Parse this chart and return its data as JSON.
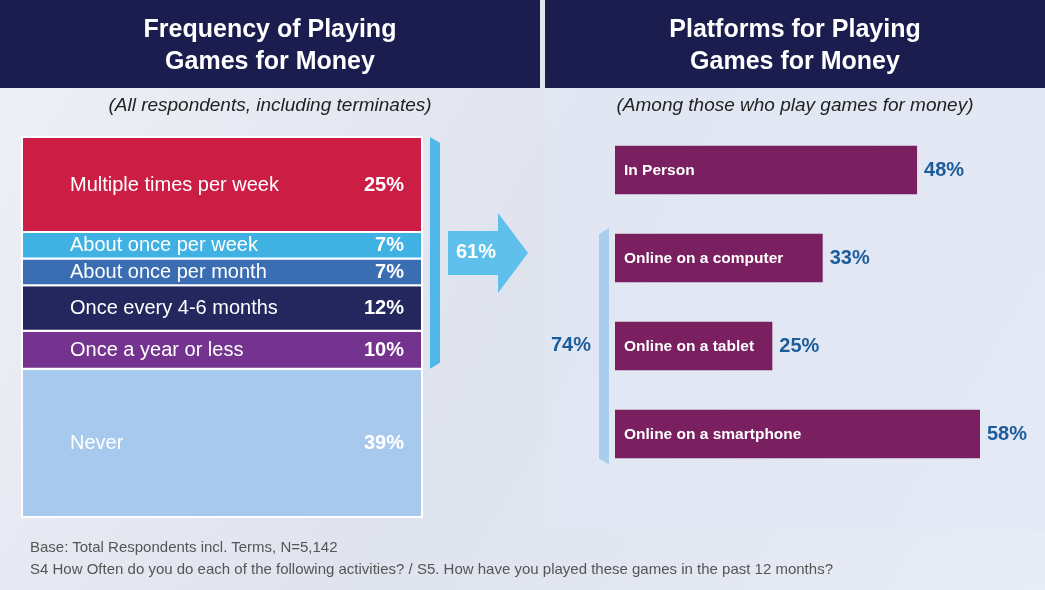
{
  "chart_data": [
    {
      "type": "bar",
      "title": "Frequency of Playing Games for Money",
      "subtitle": "(All respondents, including terminates)",
      "categories": [
        null
      ],
      "stacked": true,
      "ylim": [
        0,
        100
      ],
      "tick_labels": false,
      "series": [
        {
          "name": "Never",
          "color": "#a8c9ee",
          "values": [
            39
          ],
          "value_labels": [
            "39%"
          ]
        },
        {
          "name": "Once a year or less",
          "color": "#73338f",
          "values": [
            10
          ],
          "value_labels": [
            "10%"
          ]
        },
        {
          "name": "Once every 4-6 months",
          "color": "#24265e",
          "values": [
            12
          ],
          "value_labels": [
            "12%"
          ]
        },
        {
          "name": "About once per month",
          "color": "#3a6db2",
          "values": [
            7
          ],
          "value_labels": [
            "7%"
          ]
        },
        {
          "name": "About once per week",
          "color": "#3fb1e3",
          "values": [
            7
          ],
          "value_labels": [
            "7%"
          ]
        },
        {
          "name": "Multiple times per week",
          "color": "#cc1d45",
          "values": [
            25
          ],
          "value_labels": [
            "25%"
          ]
        }
      ],
      "annotations": [
        "61%",
        "Base: Total Respondents incl. Terms, N=5,142",
        "S4 How Often do you do each of the following activities? / S5. How have you played these games in the past 12 months?"
      ]
    },
    {
      "type": "bar",
      "title": "Platforms for Playing Games for Money",
      "subtitle": "(Among those who play games for money)",
      "orientation": "horizontal",
      "categories": [
        "In Person",
        "Online on a computer",
        "Online on a tablet",
        "Online on a smartphone"
      ],
      "values": [
        48,
        33,
        25,
        58
      ],
      "value_labels": [
        "48%",
        "33%",
        "25%",
        "58%"
      ],
      "color": "#7a1f60",
      "tick_labels": false,
      "annotations": [
        "74%"
      ]
    }
  ]
}
